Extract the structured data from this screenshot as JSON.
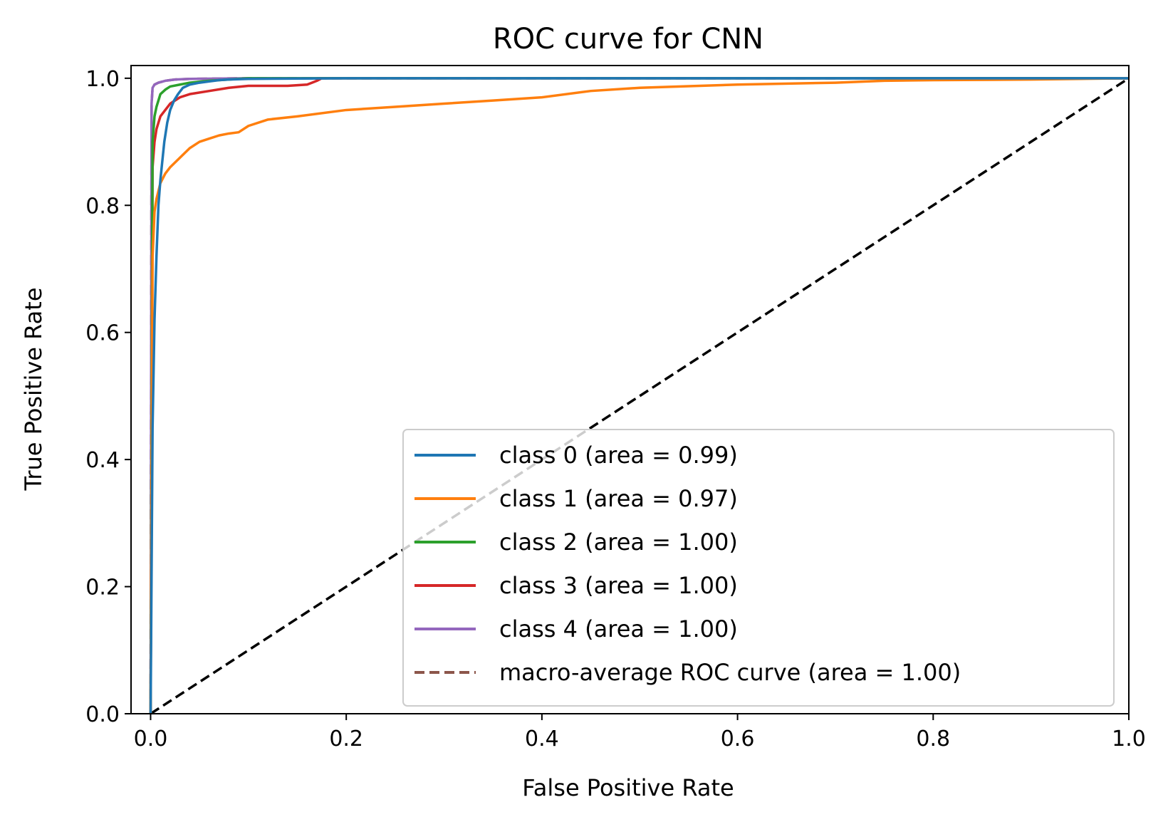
{
  "chart_data": {
    "type": "line",
    "title": "ROC curve for CNN",
    "xlabel": "False Positive Rate",
    "ylabel": "True Positive Rate",
    "xlim": [
      -0.02,
      1.0
    ],
    "ylim": [
      0.0,
      1.02
    ],
    "xticks": [
      "0.0",
      "0.2",
      "0.4",
      "0.6",
      "0.8",
      "1.0"
    ],
    "yticks": [
      "0.0",
      "0.2",
      "0.4",
      "0.6",
      "0.8",
      "1.0"
    ],
    "xtick_values": [
      0.0,
      0.2,
      0.4,
      0.6,
      0.8,
      1.0
    ],
    "ytick_values": [
      0.0,
      0.2,
      0.4,
      0.6,
      0.8,
      1.0
    ],
    "grid": false,
    "legend_position": "lower-right",
    "series": [
      {
        "name": "class 0 (area = 0.99)",
        "color": "#1f77b4",
        "style": "solid",
        "x": [
          0.0,
          0.002,
          0.004,
          0.006,
          0.008,
          0.01,
          0.012,
          0.014,
          0.017,
          0.02,
          0.024,
          0.028,
          0.033,
          0.04,
          0.05,
          0.06,
          0.07,
          0.08,
          0.1,
          0.2,
          0.4,
          0.6,
          0.8,
          1.0
        ],
        "y": [
          0.0,
          0.45,
          0.62,
          0.72,
          0.8,
          0.84,
          0.87,
          0.9,
          0.93,
          0.95,
          0.965,
          0.975,
          0.985,
          0.99,
          0.993,
          0.995,
          0.997,
          0.998,
          0.999,
          1.0,
          1.0,
          1.0,
          1.0,
          1.0
        ]
      },
      {
        "name": "class 1 (area = 0.97)",
        "color": "#ff7f0e",
        "style": "solid",
        "x": [
          0.0,
          0.002,
          0.004,
          0.006,
          0.01,
          0.015,
          0.02,
          0.03,
          0.04,
          0.05,
          0.06,
          0.07,
          0.08,
          0.09,
          0.1,
          0.12,
          0.15,
          0.2,
          0.25,
          0.3,
          0.35,
          0.4,
          0.45,
          0.5,
          0.6,
          0.7,
          0.75,
          0.8,
          0.9,
          0.95,
          1.0
        ],
        "y": [
          0.0,
          0.72,
          0.79,
          0.81,
          0.835,
          0.85,
          0.86,
          0.875,
          0.89,
          0.9,
          0.905,
          0.91,
          0.913,
          0.915,
          0.925,
          0.935,
          0.94,
          0.95,
          0.955,
          0.96,
          0.965,
          0.97,
          0.98,
          0.985,
          0.99,
          0.993,
          0.996,
          0.997,
          0.998,
          0.999,
          1.0
        ]
      },
      {
        "name": "class 2 (area = 1.00)",
        "color": "#2ca02c",
        "style": "solid",
        "x": [
          0.0,
          0.002,
          0.004,
          0.006,
          0.008,
          0.01,
          0.015,
          0.02,
          0.03,
          0.04,
          0.06,
          0.08,
          0.1,
          0.2,
          0.4,
          0.6,
          0.8,
          1.0
        ],
        "y": [
          0.0,
          0.9,
          0.94,
          0.955,
          0.965,
          0.975,
          0.982,
          0.987,
          0.99,
          0.993,
          0.996,
          0.998,
          1.0,
          1.0,
          1.0,
          1.0,
          1.0,
          1.0
        ]
      },
      {
        "name": "class 3 (area = 1.00)",
        "color": "#d62728",
        "style": "solid",
        "x": [
          0.0,
          0.002,
          0.004,
          0.006,
          0.008,
          0.01,
          0.015,
          0.02,
          0.03,
          0.04,
          0.06,
          0.08,
          0.1,
          0.12,
          0.14,
          0.16,
          0.165,
          0.17,
          0.175,
          0.2,
          0.4,
          0.6,
          0.8,
          1.0
        ],
        "y": [
          0.0,
          0.86,
          0.9,
          0.92,
          0.93,
          0.94,
          0.95,
          0.96,
          0.97,
          0.975,
          0.98,
          0.985,
          0.988,
          0.988,
          0.988,
          0.99,
          0.993,
          0.996,
          1.0,
          1.0,
          1.0,
          1.0,
          1.0,
          1.0
        ]
      },
      {
        "name": "class 4 (area = 1.00)",
        "color": "#9467bd",
        "style": "solid",
        "x": [
          0.0,
          0.001,
          0.002,
          0.004,
          0.008,
          0.015,
          0.025,
          0.04,
          0.1,
          0.4,
          0.7,
          1.0
        ],
        "y": [
          0.0,
          0.96,
          0.985,
          0.99,
          0.993,
          0.996,
          0.998,
          0.999,
          1.0,
          1.0,
          1.0,
          1.0
        ]
      },
      {
        "name": "macro-average ROC curve (area = 1.00)",
        "color": "#8c564b",
        "style": "dashed",
        "x": [
          0.0,
          0.001,
          0.002,
          0.004,
          0.008,
          0.015,
          0.025,
          0.04,
          0.1,
          0.4,
          0.7,
          1.0
        ],
        "y": [
          0.0,
          0.96,
          0.985,
          0.99,
          0.993,
          0.996,
          0.998,
          0.999,
          1.0,
          1.0,
          1.0,
          1.0
        ]
      },
      {
        "name": "",
        "color": "#000000",
        "style": "dashed",
        "x": [
          0.0,
          1.0
        ],
        "y": [
          0.0,
          1.0
        ]
      }
    ]
  }
}
